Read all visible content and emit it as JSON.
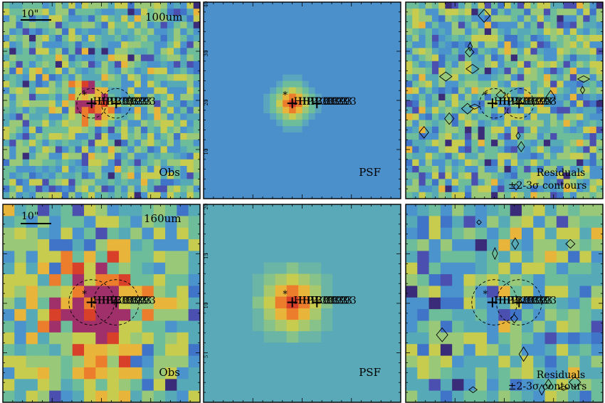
{
  "figure": {
    "rows": [
      {
        "band": "100um",
        "scale_bar": "10\"",
        "panels": [
          {
            "label": "Obs",
            "kind": "obs"
          },
          {
            "label": "PSF",
            "kind": "psf"
          },
          {
            "label": "Residuals",
            "label2": "±2-3σ contours",
            "kind": "res"
          }
        ],
        "axis_ticks": [
          "40",
          "30",
          "20",
          "10"
        ]
      },
      {
        "band": "160um",
        "scale_bar": "10\"",
        "panels": [
          {
            "label": "Obs",
            "kind": "obs"
          },
          {
            "label": "PSF",
            "kind": "psf"
          },
          {
            "label": "Residuals",
            "label2": "±2-3σ contours",
            "kind": "res"
          }
        ],
        "axis_ticks": [
          "20",
          "15",
          "10",
          "5"
        ]
      }
    ],
    "source_labels": [
      "HIP 38393",
      "HIP 38393",
      "HIP 38393"
    ],
    "palette": [
      "#3b2c7a",
      "#4a4fb0",
      "#3f74c9",
      "#4a93cc",
      "#56aab8",
      "#6dbd9a",
      "#98c878",
      "#c8cc4e",
      "#e8b43a",
      "#ec7d2c",
      "#d8402a",
      "#a0306a"
    ]
  }
}
